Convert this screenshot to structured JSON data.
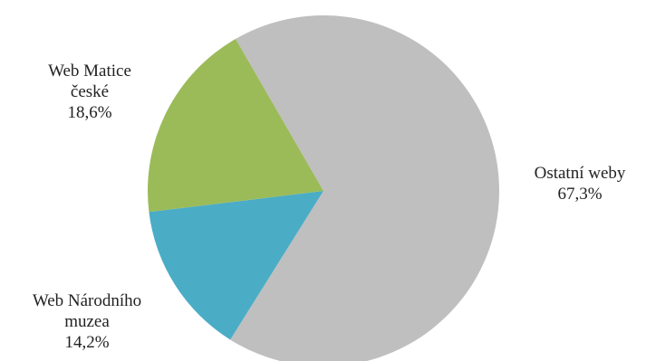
{
  "chart_data": {
    "type": "pie",
    "title": "",
    "slices": [
      {
        "label_lines": [
          "Ostatní weby"
        ],
        "value": 67.3,
        "value_label": "67,3%",
        "color": "#bfbfbf"
      },
      {
        "label_lines": [
          "Web Národního",
          "muzea"
        ],
        "value": 14.2,
        "value_label": "14,2%",
        "color": "#4bacc6"
      },
      {
        "label_lines": [
          "Web Matice",
          "české"
        ],
        "value": 18.6,
        "value_label": "18,6%",
        "color": "#9bbb59"
      }
    ],
    "start_angle_deg": -30,
    "direction": "clockwise",
    "legend": "none",
    "data_labels": "outside"
  }
}
